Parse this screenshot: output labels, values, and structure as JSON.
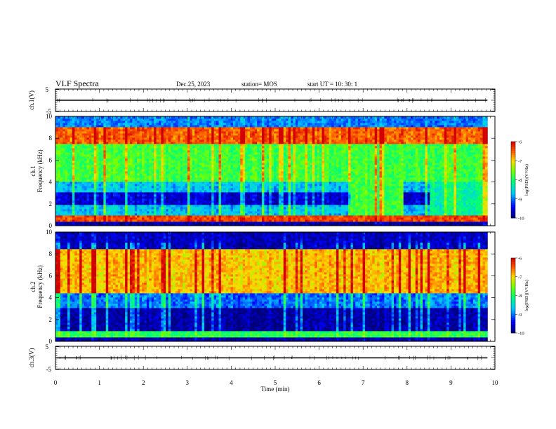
{
  "header": {
    "title": "VLF Spectra",
    "date": "Dec.25, 2023",
    "station": "station= MOS",
    "start": "start  UT =   10: 30: 1"
  },
  "chart_data": [
    {
      "type": "line",
      "panel": "ch1_waveform",
      "ylabel": "ch.1(V)",
      "ylim": [
        -5,
        5
      ],
      "yticks": [
        "5",
        "-5"
      ],
      "xlim": [
        0,
        10
      ],
      "series": [
        {
          "x": [
            0,
            9.83
          ],
          "y": [
            0,
            0
          ]
        }
      ]
    },
    {
      "type": "heatmap",
      "panel": "ch1_spectrogram",
      "ylabel": "ch.1\nFrequency  (kHz)",
      "ylim": [
        0,
        10
      ],
      "yticks": [
        "0",
        "2",
        "4",
        "6",
        "8",
        "10"
      ],
      "xlim": [
        0,
        10
      ],
      "data_end_min": 9.83,
      "colorbar": {
        "label": "log(PSD)(V²/Hz)",
        "range": [
          -10,
          -6
        ],
        "ticks": [
          "-6",
          "-7",
          "-8",
          "-9",
          "-10"
        ]
      },
      "bands": [
        {
          "f": [
            0,
            0.3
          ],
          "level": -9.8
        },
        {
          "f": [
            0.3,
            1.0
          ],
          "level": -6.4
        },
        {
          "f": [
            1.0,
            2.0
          ],
          "level": -8.7
        },
        {
          "f": [
            2.0,
            3.0
          ],
          "level": -9.6
        },
        {
          "f": [
            3.0,
            4.0
          ],
          "level": -8.7
        },
        {
          "f": [
            4.0,
            7.5
          ],
          "level": -7.8
        },
        {
          "f": [
            7.5,
            9.0
          ],
          "level": -6.5
        },
        {
          "f": [
            9.0,
            10.0
          ],
          "level": -9.0
        }
      ],
      "events": [
        {
          "t": [
            6.7,
            7.9
          ],
          "f": [
            1.0,
            4.0
          ],
          "level": -7.8
        },
        {
          "t": [
            8.5,
            9.83
          ],
          "f": [
            1.0,
            4.0
          ],
          "level": -8.2
        }
      ]
    },
    {
      "type": "heatmap",
      "panel": "ch2_spectrogram",
      "ylabel": "ch.2\nFrequency  (kHz)",
      "ylim": [
        0,
        10
      ],
      "yticks": [
        "0",
        "2",
        "4",
        "6",
        "8",
        "10"
      ],
      "xlim": [
        0,
        10
      ],
      "data_end_min": 9.83,
      "colorbar": {
        "label": "log(PSD)(V²/Hz)",
        "range": [
          -10,
          -6
        ],
        "ticks": [
          "-6",
          "-7",
          "-8",
          "-9",
          "-10"
        ]
      },
      "bands": [
        {
          "f": [
            0,
            0.3
          ],
          "level": -9.8
        },
        {
          "f": [
            0.3,
            1.0
          ],
          "level": -7.9
        },
        {
          "f": [
            1.0,
            3.0
          ],
          "level": -9.8
        },
        {
          "f": [
            3.0,
            4.5
          ],
          "level": -9.0
        },
        {
          "f": [
            4.5,
            8.5
          ],
          "level": -6.9
        },
        {
          "f": [
            8.5,
            10.0
          ],
          "level": -9.7
        }
      ],
      "events": []
    },
    {
      "type": "line",
      "panel": "ch3_waveform",
      "ylabel": "ch.3(V)",
      "ylim": [
        -5,
        5
      ],
      "yticks": [
        "5",
        "-5"
      ],
      "xlim": [
        0,
        10
      ],
      "series": [
        {
          "x": [
            0,
            9.83
          ],
          "y": [
            0,
            0
          ]
        }
      ]
    }
  ],
  "x_axis": {
    "label": "Time  (min)",
    "ticks": [
      "0",
      "1",
      "2",
      "3",
      "4",
      "5",
      "6",
      "7",
      "8",
      "9",
      "10"
    ]
  }
}
